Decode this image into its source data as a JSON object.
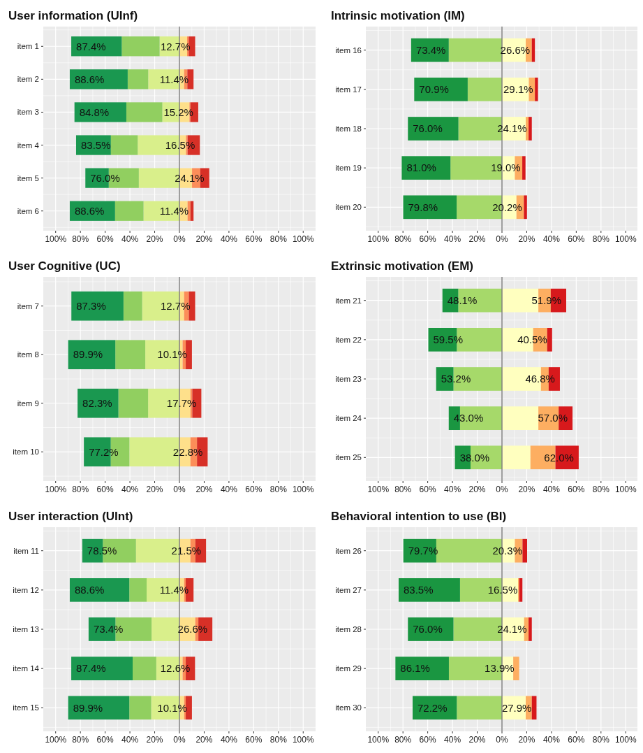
{
  "chart_data": [
    {
      "type": "bar",
      "orientation": "horizontal",
      "stacked": true,
      "title": "User information (UInf)",
      "categories": [
        "item 1",
        "item 2",
        "item 3",
        "item 4",
        "item 5",
        "item 6"
      ],
      "series": [
        {
          "color": "#d9ef8b",
          "values": [
            -16.0,
            -25.2,
            -13.8,
            -33.7,
            -32.8,
            -29.0
          ]
        },
        {
          "color": "#91cf60",
          "values": [
            -30.6,
            -16.6,
            -29.1,
            -21.7,
            -24.3,
            -23.0
          ]
        },
        {
          "color": "#1a9850",
          "values": [
            -40.8,
            -46.8,
            -41.9,
            -28.1,
            -18.9,
            -36.6
          ]
        },
        {
          "color": "#fee08b",
          "values": [
            6.2,
            3.8,
            8.1,
            5.3,
            10.2,
            6.6
          ]
        },
        {
          "color": "#fc8d59",
          "values": [
            1.3,
            2.6,
            0.8,
            1.3,
            6.6,
            2.3
          ]
        },
        {
          "color": "#d73027",
          "values": [
            5.2,
            5.0,
            6.3,
            9.9,
            7.3,
            2.5
          ]
        }
      ],
      "annotations": [
        {
          "text": "87.4%",
          "x": -87.4,
          "y": "item 1"
        },
        {
          "text": "12.7%",
          "x": 12.7,
          "y": "item 1"
        },
        {
          "text": "88.6%",
          "x": -88.6,
          "y": "item 2"
        },
        {
          "text": "11.4%",
          "x": 11.4,
          "y": "item 2"
        },
        {
          "text": "84.8%",
          "x": -84.8,
          "y": "item 3"
        },
        {
          "text": "15.2%",
          "x": 15.2,
          "y": "item 3"
        },
        {
          "text": "83.5%",
          "x": -83.5,
          "y": "item 4"
        },
        {
          "text": "16.5%",
          "x": 16.5,
          "y": "item 4"
        },
        {
          "text": "76.0%",
          "x": -76.0,
          "y": "item 5"
        },
        {
          "text": "24.1%",
          "x": 24.1,
          "y": "item 5"
        },
        {
          "text": "88.6%",
          "x": -88.6,
          "y": "item 6"
        },
        {
          "text": "11.4%",
          "x": 11.4,
          "y": "item 6"
        }
      ],
      "xlim": [
        -110,
        110
      ],
      "xticks": [
        {
          "value": -100,
          "label": "100%"
        },
        {
          "value": -80,
          "label": "80%"
        },
        {
          "value": -60,
          "label": "60%"
        },
        {
          "value": -40,
          "label": "40%"
        },
        {
          "value": -20,
          "label": "20%"
        },
        {
          "value": 0,
          "label": "0%"
        },
        {
          "value": 20,
          "label": "20%"
        },
        {
          "value": 40,
          "label": "40%"
        },
        {
          "value": 60,
          "label": "60%"
        },
        {
          "value": 80,
          "label": "80%"
        },
        {
          "value": 100,
          "label": "100%"
        }
      ],
      "grid": true,
      "ref_lines": [
        {
          "axis": "x",
          "value": 0,
          "color": "#808080"
        }
      ]
    },
    {
      "type": "bar",
      "orientation": "horizontal",
      "stacked": true,
      "title": "Intrinsic motivation (IM)",
      "categories": [
        "item 16",
        "item 17",
        "item 18",
        "item 19",
        "item 20"
      ],
      "series": [
        {
          "color": "#a6d96a",
          "values": [
            -43.0,
            -27.7,
            -35.2,
            -41.6,
            -36.6
          ]
        },
        {
          "color": "#1a9641",
          "values": [
            -30.4,
            -43.2,
            -40.8,
            -39.4,
            -43.2
          ]
        },
        {
          "color": "#ffffbf",
          "values": [
            19.2,
            21.7,
            19.2,
            10.4,
            11.7
          ]
        },
        {
          "color": "#fdae61",
          "values": [
            4.9,
            4.9,
            2.3,
            6.0,
            6.0
          ]
        },
        {
          "color": "#d7191c",
          "values": [
            2.5,
            2.5,
            2.6,
            2.6,
            2.5
          ]
        }
      ],
      "annotations": [
        {
          "text": "73.4%",
          "x": -73.4,
          "y": "item 16"
        },
        {
          "text": "26.6%",
          "x": 26.6,
          "y": "item 16"
        },
        {
          "text": "70.9%",
          "x": -70.9,
          "y": "item 17"
        },
        {
          "text": "29.1%",
          "x": 29.1,
          "y": "item 17"
        },
        {
          "text": "76.0%",
          "x": -76.0,
          "y": "item 18"
        },
        {
          "text": "24.1%",
          "x": 24.1,
          "y": "item 18"
        },
        {
          "text": "81.0%",
          "x": -81.0,
          "y": "item 19"
        },
        {
          "text": "19.0%",
          "x": 19.0,
          "y": "item 19"
        },
        {
          "text": "79.8%",
          "x": -79.8,
          "y": "item 20"
        },
        {
          "text": "20.2%",
          "x": 20.2,
          "y": "item 20"
        }
      ],
      "xlim": [
        -110,
        110
      ],
      "xticks": [
        {
          "value": -100,
          "label": "100%"
        },
        {
          "value": -80,
          "label": "80%"
        },
        {
          "value": -60,
          "label": "60%"
        },
        {
          "value": -40,
          "label": "40%"
        },
        {
          "value": -20,
          "label": "20%"
        },
        {
          "value": 0,
          "label": "0%"
        },
        {
          "value": 20,
          "label": "20%"
        },
        {
          "value": 40,
          "label": "40%"
        },
        {
          "value": 60,
          "label": "60%"
        },
        {
          "value": 80,
          "label": "80%"
        },
        {
          "value": 100,
          "label": "100%"
        }
      ],
      "grid": true,
      "ref_lines": [
        {
          "axis": "x",
          "value": 0,
          "color": "#808080"
        }
      ]
    },
    {
      "type": "bar",
      "orientation": "horizontal",
      "stacked": true,
      "title": "User Cognitive (UC)",
      "categories": [
        "item 7",
        "item 8",
        "item 9",
        "item 10"
      ],
      "series": [
        {
          "color": "#d9ef8b",
          "values": [
            -30.1,
            -27.6,
            -25.3,
            -40.4
          ]
        },
        {
          "color": "#91cf60",
          "values": [
            -15.1,
            -24.2,
            -24.0,
            -15.1
          ]
        },
        {
          "color": "#1a9850",
          "values": [
            -42.1,
            -38.1,
            -33.0,
            -21.7
          ]
        },
        {
          "color": "#fee08b",
          "values": [
            3.8,
            2.6,
            8.9,
            8.9
          ]
        },
        {
          "color": "#fc8d59",
          "values": [
            3.8,
            2.5,
            1.5,
            5.3
          ]
        },
        {
          "color": "#d73027",
          "values": [
            5.1,
            5.0,
            7.3,
            8.6
          ]
        }
      ],
      "annotations": [
        {
          "text": "87.3%",
          "x": -87.3,
          "y": "item 7"
        },
        {
          "text": "12.7%",
          "x": 12.7,
          "y": "item 7"
        },
        {
          "text": "89.9%",
          "x": -89.9,
          "y": "item 8"
        },
        {
          "text": "10.1%",
          "x": 10.1,
          "y": "item 8"
        },
        {
          "text": "82.3%",
          "x": -82.3,
          "y": "item 9"
        },
        {
          "text": "17.7%",
          "x": 17.7,
          "y": "item 9"
        },
        {
          "text": "77.2%",
          "x": -77.2,
          "y": "item 10"
        },
        {
          "text": "22.8%",
          "x": 22.8,
          "y": "item 10"
        }
      ],
      "xlim": [
        -110,
        110
      ],
      "xticks": [
        {
          "value": -100,
          "label": "100%"
        },
        {
          "value": -80,
          "label": "80%"
        },
        {
          "value": -60,
          "label": "60%"
        },
        {
          "value": -40,
          "label": "40%"
        },
        {
          "value": -20,
          "label": "20%"
        },
        {
          "value": 0,
          "label": "0%"
        },
        {
          "value": 20,
          "label": "20%"
        },
        {
          "value": 40,
          "label": "40%"
        },
        {
          "value": 60,
          "label": "60%"
        },
        {
          "value": 80,
          "label": "80%"
        },
        {
          "value": 100,
          "label": "100%"
        }
      ],
      "grid": true,
      "ref_lines": [
        {
          "axis": "x",
          "value": 0,
          "color": "#808080"
        }
      ]
    },
    {
      "type": "bar",
      "orientation": "horizontal",
      "stacked": true,
      "title": "Extrinsic motivation (EM)",
      "categories": [
        "item 21",
        "item 22",
        "item 23",
        "item 24",
        "item 25"
      ],
      "series": [
        {
          "color": "#a6d96a",
          "values": [
            -35.3,
            -36.5,
            -39.2,
            -33.9,
            -25.4
          ]
        },
        {
          "color": "#1a9641",
          "values": [
            -12.8,
            -23.0,
            -14.0,
            -9.1,
            -12.6
          ]
        },
        {
          "color": "#ffffbf",
          "values": [
            29.4,
            25.2,
            31.5,
            29.4,
            23.0
          ]
        },
        {
          "color": "#fdae61",
          "values": [
            10.0,
            11.3,
            6.2,
            16.4,
            20.2
          ]
        },
        {
          "color": "#d7191c",
          "values": [
            12.5,
            4.0,
            9.1,
            11.2,
            18.8
          ]
        }
      ],
      "annotations": [
        {
          "text": "48.1%",
          "x": -48.1,
          "y": "item 21"
        },
        {
          "text": "51.9%",
          "x": 51.9,
          "y": "item 21"
        },
        {
          "text": "59.5%",
          "x": -59.5,
          "y": "item 22"
        },
        {
          "text": "40.5%",
          "x": 40.5,
          "y": "item 22"
        },
        {
          "text": "53.2%",
          "x": -53.2,
          "y": "item 23"
        },
        {
          "text": "46.8%",
          "x": 46.8,
          "y": "item 23"
        },
        {
          "text": "43.0%",
          "x": -43.0,
          "y": "item 24"
        },
        {
          "text": "57.0%",
          "x": 57.0,
          "y": "item 24"
        },
        {
          "text": "38.0%",
          "x": -38.0,
          "y": "item 25"
        },
        {
          "text": "62.0%",
          "x": 62.0,
          "y": "item 25"
        }
      ],
      "xlim": [
        -110,
        110
      ],
      "xticks": [
        {
          "value": -100,
          "label": "100%"
        },
        {
          "value": -80,
          "label": "80%"
        },
        {
          "value": -60,
          "label": "60%"
        },
        {
          "value": -40,
          "label": "40%"
        },
        {
          "value": -20,
          "label": "20%"
        },
        {
          "value": 0,
          "label": "0%"
        },
        {
          "value": 20,
          "label": "20%"
        },
        {
          "value": 40,
          "label": "40%"
        },
        {
          "value": 60,
          "label": "60%"
        },
        {
          "value": 80,
          "label": "80%"
        },
        {
          "value": 100,
          "label": "100%"
        }
      ],
      "grid": true,
      "ref_lines": [
        {
          "axis": "x",
          "value": 0,
          "color": "#808080"
        }
      ]
    },
    {
      "type": "bar",
      "orientation": "horizontal",
      "stacked": true,
      "title": "User interaction (UInt)",
      "categories": [
        "item 11",
        "item 12",
        "item 13",
        "item 14",
        "item 15"
      ],
      "series": [
        {
          "color": "#d9ef8b",
          "values": [
            -35.1,
            -26.5,
            -22.5,
            -18.7,
            -22.8
          ]
        },
        {
          "color": "#91cf60",
          "values": [
            -26.8,
            -14.0,
            -29.2,
            -19.1,
            -17.7
          ]
        },
        {
          "color": "#1a9850",
          "values": [
            -16.6,
            -48.1,
            -21.7,
            -49.6,
            -49.4
          ]
        },
        {
          "color": "#fee08b",
          "values": [
            8.9,
            3.8,
            12.8,
            2.6,
            3.8
          ]
        },
        {
          "color": "#fc8d59",
          "values": [
            4.0,
            1.3,
            2.5,
            2.5,
            1.3
          ]
        },
        {
          "color": "#d73027",
          "values": [
            8.6,
            6.3,
            11.3,
            7.5,
            5.0
          ]
        }
      ],
      "annotations": [
        {
          "text": "78.5%",
          "x": -78.5,
          "y": "item 11"
        },
        {
          "text": "21.5%",
          "x": 21.5,
          "y": "item 11"
        },
        {
          "text": "88.6%",
          "x": -88.6,
          "y": "item 12"
        },
        {
          "text": "11.4%",
          "x": 11.4,
          "y": "item 12"
        },
        {
          "text": "73.4%",
          "x": -73.4,
          "y": "item 13"
        },
        {
          "text": "26.6%",
          "x": 26.6,
          "y": "item 13"
        },
        {
          "text": "87.4%",
          "x": -87.4,
          "y": "item 14"
        },
        {
          "text": "12.6%",
          "x": 12.6,
          "y": "item 14"
        },
        {
          "text": "89.9%",
          "x": -89.9,
          "y": "item 15"
        },
        {
          "text": "10.1%",
          "x": 10.1,
          "y": "item 15"
        }
      ],
      "xlim": [
        -110,
        110
      ],
      "xticks": [
        {
          "value": -100,
          "label": "100%"
        },
        {
          "value": -80,
          "label": "80%"
        },
        {
          "value": -60,
          "label": "60%"
        },
        {
          "value": -40,
          "label": "40%"
        },
        {
          "value": -20,
          "label": "20%"
        },
        {
          "value": 0,
          "label": "0%"
        },
        {
          "value": 20,
          "label": "20%"
        },
        {
          "value": 40,
          "label": "40%"
        },
        {
          "value": 60,
          "label": "60%"
        },
        {
          "value": 80,
          "label": "80%"
        },
        {
          "value": 100,
          "label": "100%"
        }
      ],
      "grid": true,
      "ref_lines": [
        {
          "axis": "x",
          "value": 0,
          "color": "#808080"
        }
      ]
    },
    {
      "type": "bar",
      "orientation": "horizontal",
      "stacked": true,
      "title": "Behavioral intention to use (BI)",
      "categories": [
        "item 26",
        "item 27",
        "item 28",
        "item 29",
        "item 30"
      ],
      "series": [
        {
          "color": "#a6d96a",
          "values": [
            -53.1,
            -33.9,
            -39.2,
            -42.9,
            -36.5
          ]
        },
        {
          "color": "#1a9641",
          "values": [
            -26.6,
            -49.6,
            -36.8,
            -43.2,
            -35.7
          ]
        },
        {
          "color": "#ffffbf",
          "values": [
            10.4,
            13.0,
            17.9,
            9.1,
            19.2
          ]
        },
        {
          "color": "#fdae61",
          "values": [
            6.2,
            0.9,
            3.6,
            4.8,
            4.9
          ]
        },
        {
          "color": "#d7191c",
          "values": [
            3.7,
            2.6,
            2.6,
            0,
            3.8
          ]
        }
      ],
      "annotations": [
        {
          "text": "79.7%",
          "x": -79.7,
          "y": "item 26"
        },
        {
          "text": "20.3%",
          "x": 20.3,
          "y": "item 26"
        },
        {
          "text": "83.5%",
          "x": -83.5,
          "y": "item 27"
        },
        {
          "text": "16.5%",
          "x": 16.5,
          "y": "item 27"
        },
        {
          "text": "76.0%",
          "x": -76.0,
          "y": "item 28"
        },
        {
          "text": "24.1%",
          "x": 24.1,
          "y": "item 28"
        },
        {
          "text": "86.1%",
          "x": -86.1,
          "y": "item 29"
        },
        {
          "text": "13.9%",
          "x": 13.9,
          "y": "item 29"
        },
        {
          "text": "72.2%",
          "x": -72.2,
          "y": "item 30"
        },
        {
          "text": "27.9%",
          "x": 27.9,
          "y": "item 30"
        }
      ],
      "xlim": [
        -110,
        110
      ],
      "xticks": [
        {
          "value": -100,
          "label": "100%"
        },
        {
          "value": -80,
          "label": "80%"
        },
        {
          "value": -60,
          "label": "60%"
        },
        {
          "value": -40,
          "label": "40%"
        },
        {
          "value": -20,
          "label": "20%"
        },
        {
          "value": 0,
          "label": "0%"
        },
        {
          "value": 20,
          "label": "20%"
        },
        {
          "value": 40,
          "label": "40%"
        },
        {
          "value": 60,
          "label": "60%"
        },
        {
          "value": 80,
          "label": "80%"
        },
        {
          "value": 100,
          "label": "100%"
        }
      ],
      "grid": true,
      "ref_lines": [
        {
          "axis": "x",
          "value": 0,
          "color": "#808080"
        }
      ]
    }
  ]
}
